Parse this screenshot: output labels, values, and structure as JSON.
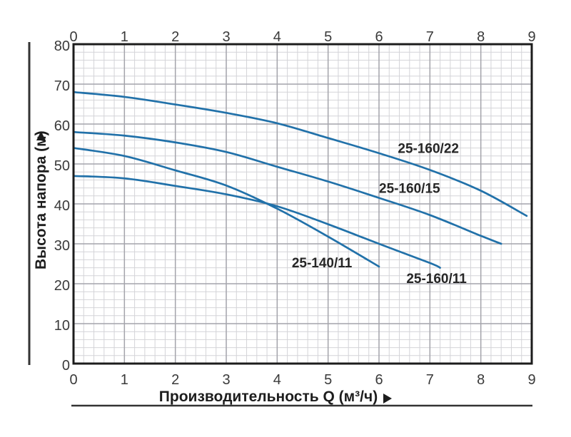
{
  "chart_data": {
    "type": "line",
    "x_axis": {
      "label": "Производительность Q (м³/ч)",
      "ticks": [
        "0",
        "1",
        "2",
        "3",
        "4",
        "5",
        "6",
        "7",
        "8",
        "9"
      ],
      "range": [
        0,
        9
      ],
      "major_step": 1,
      "minor_step": 0.2,
      "ticks_shown_on": "top and bottom"
    },
    "y_axis": {
      "label": "Высота напора (м)",
      "ticks": [
        "0",
        "10",
        "20",
        "30",
        "40",
        "50",
        "60",
        "70",
        "80"
      ],
      "range": [
        0,
        80
      ],
      "major_step": 10,
      "minor_step": 2,
      "ticks_shown_on": "left"
    },
    "grid": "on",
    "legend_position": "labels inline next to curves",
    "series": [
      {
        "name": "25-160/22",
        "points": [
          [
            0,
            68
          ],
          [
            1,
            66.8
          ],
          [
            2,
            64.9
          ],
          [
            3,
            62.8
          ],
          [
            4,
            60.2
          ],
          [
            5,
            56.5
          ],
          [
            6,
            52.7
          ],
          [
            7,
            48.5
          ],
          [
            8,
            43.3
          ],
          [
            8.9,
            37
          ]
        ],
        "label": {
          "text": "25-160/22",
          "x": 6.97,
          "y": 54
        }
      },
      {
        "name": "25-160/15",
        "points": [
          [
            0,
            58
          ],
          [
            1,
            57.1
          ],
          [
            2,
            55.4
          ],
          [
            3,
            53
          ],
          [
            4,
            49.3
          ],
          [
            5,
            45.6
          ],
          [
            6,
            41.5
          ],
          [
            7,
            37.2
          ],
          [
            8,
            32
          ],
          [
            8.4,
            30
          ]
        ],
        "label": {
          "text": "25-160/15",
          "x": 6.6,
          "y": 44
        }
      },
      {
        "name": "25-140/11",
        "points": [
          [
            0,
            54
          ],
          [
            1,
            52
          ],
          [
            2,
            48.4
          ],
          [
            3,
            44.6
          ],
          [
            4,
            38.8
          ],
          [
            5,
            31.8
          ],
          [
            6,
            24.3
          ]
        ],
        "label": {
          "text": "25-140/11",
          "x": 4.88,
          "y": 25.4
        }
      },
      {
        "name": "25-160/11",
        "points": [
          [
            0,
            47
          ],
          [
            1,
            46.4
          ],
          [
            2,
            44.5
          ],
          [
            3,
            42.4
          ],
          [
            4,
            39.4
          ],
          [
            5,
            34.9
          ],
          [
            6,
            30
          ],
          [
            7,
            25.2
          ],
          [
            7.2,
            24
          ]
        ],
        "label": {
          "text": "25-160/11",
          "x": 7.13,
          "y": 21.4
        }
      }
    ],
    "colors": {
      "curve": "#2171a9",
      "grid_minor": "#d4d4d8",
      "grid_major": "#a4a4ab",
      "plot_border": "#1c1c1c",
      "tick_text": "#3a3a3a",
      "title_text": "#1d1d1d",
      "rule_line": "#333333"
    }
  }
}
